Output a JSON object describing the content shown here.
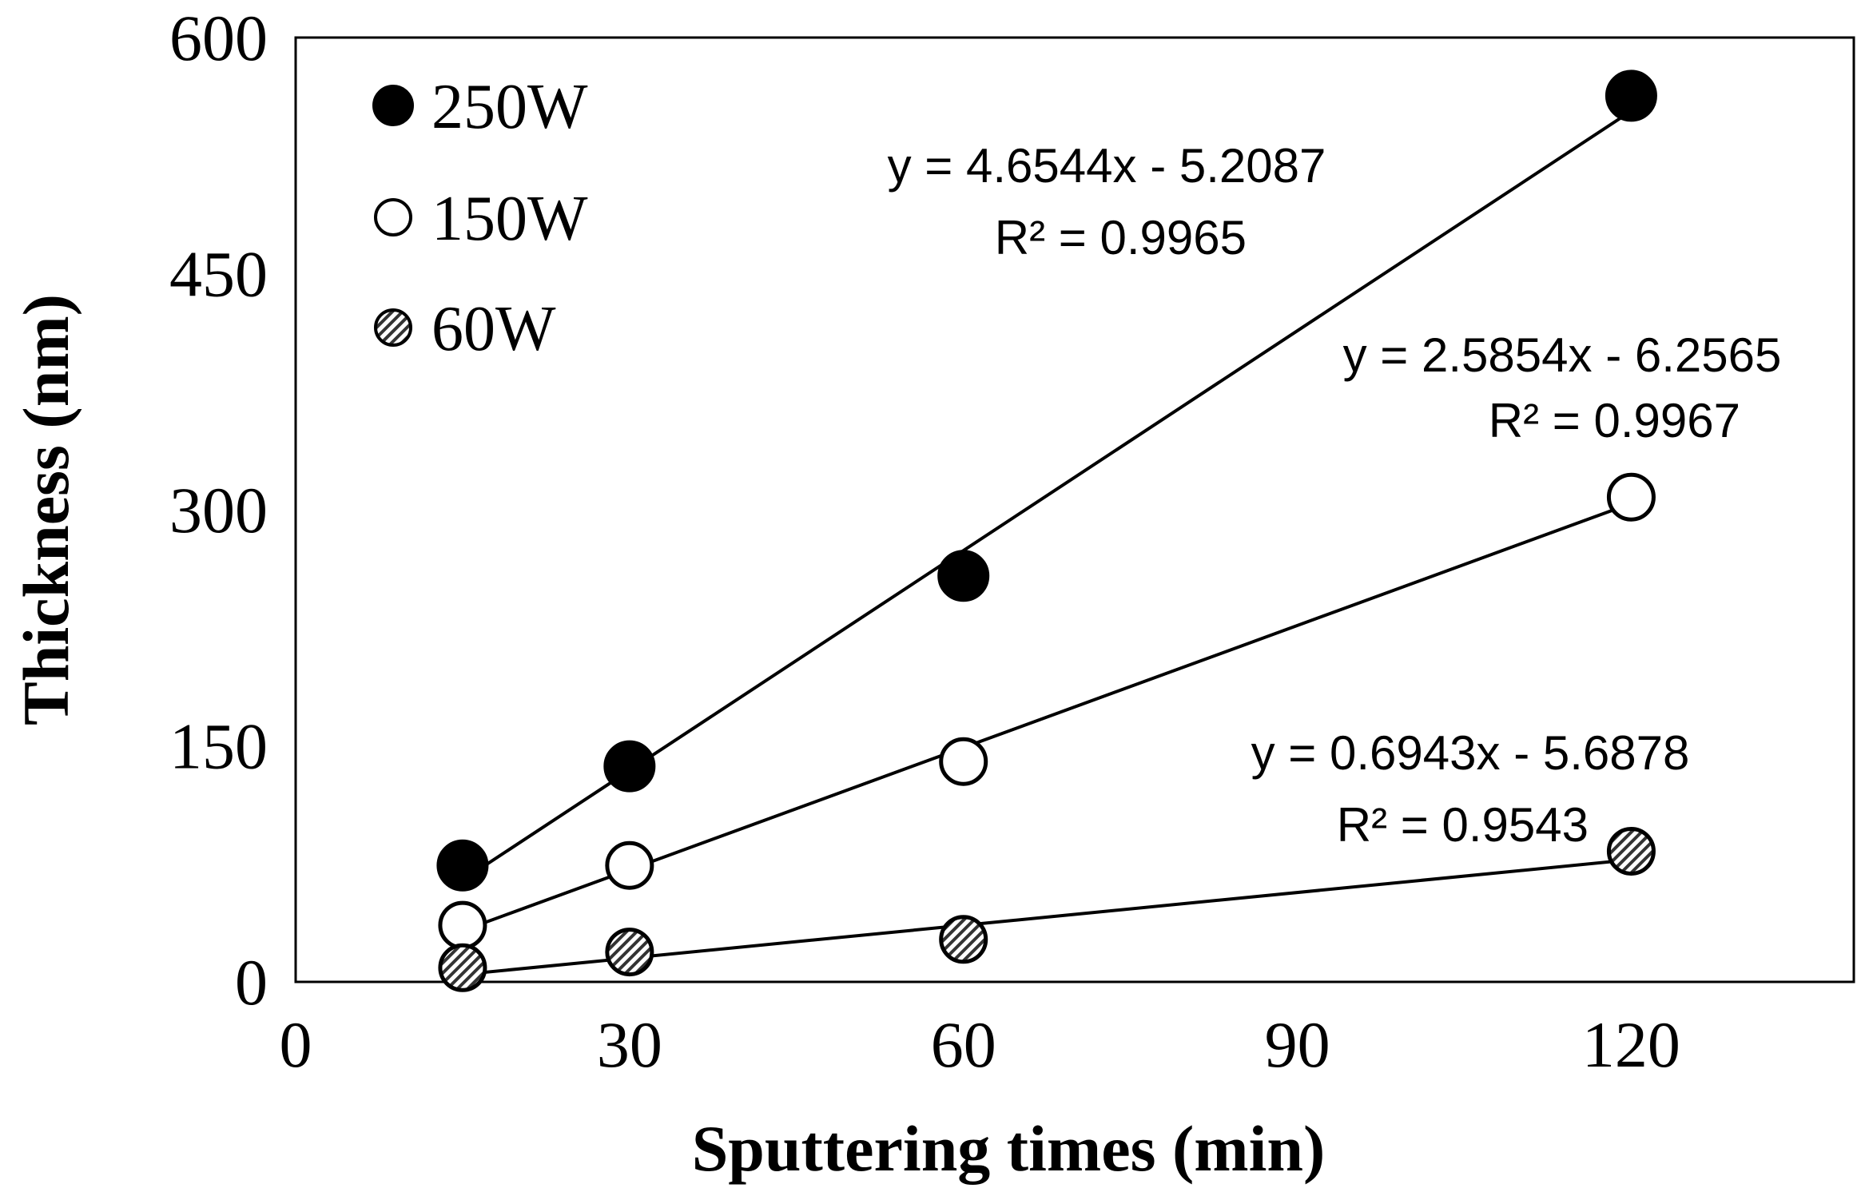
{
  "chart_data": {
    "type": "scatter",
    "title": "",
    "xlabel": "Sputtering times (min)",
    "ylabel": "Thickness (nm)",
    "xlim": [
      0,
      140
    ],
    "ylim": [
      0,
      600
    ],
    "xticks": [
      0,
      30,
      60,
      90,
      120
    ],
    "yticks": [
      0,
      150,
      300,
      450,
      600
    ],
    "grid": false,
    "legend_position": "top-left",
    "series": [
      {
        "name": "250W",
        "marker": "filled-circle",
        "color": "#000000",
        "x": [
          15,
          30,
          60,
          120
        ],
        "y": [
          74,
          137,
          258,
          563
        ],
        "trendline": {
          "slope": 4.6544,
          "intercept": -5.2087,
          "equation": "y = 4.6544x - 5.2087",
          "r2": "R² = 0.9965"
        }
      },
      {
        "name": "150W",
        "marker": "open-circle",
        "color": "#000000",
        "x": [
          15,
          30,
          60,
          120
        ],
        "y": [
          36,
          74,
          140,
          308
        ],
        "trendline": {
          "slope": 2.5854,
          "intercept": -6.2565,
          "equation": "y = 2.5854x - 6.2565",
          "r2": "R² = 0.9967"
        }
      },
      {
        "name": "60W",
        "marker": "hatched-circle",
        "color": "#000000",
        "x": [
          15,
          30,
          60,
          120
        ],
        "y": [
          9,
          19,
          27,
          83
        ],
        "trendline": {
          "slope": 0.6943,
          "intercept": -5.6878,
          "equation": "y = 0.6943x - 5.6878",
          "r2": "R² = 0.9543"
        }
      }
    ]
  }
}
